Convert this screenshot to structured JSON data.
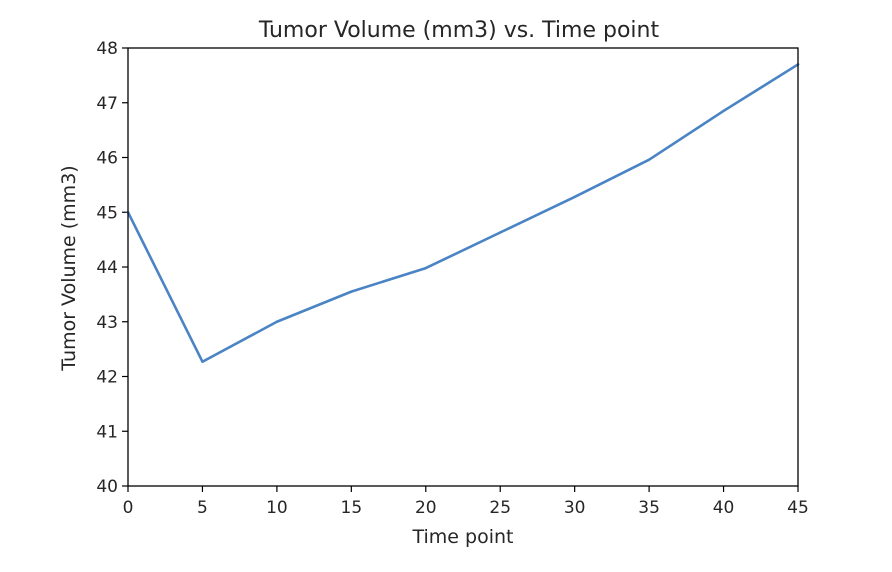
{
  "chart_data": {
    "type": "line",
    "title": "Tumor Volume (mm3) vs. Time point",
    "xlabel": "Time point",
    "ylabel": "Tumor Volume (mm3)",
    "x": [
      0,
      5,
      10,
      15,
      20,
      25,
      30,
      35,
      40,
      45
    ],
    "series": [
      {
        "values": [
          45.0,
          42.27,
          43.0,
          43.55,
          43.98,
          44.63,
          45.28,
          45.96,
          46.85,
          47.7
        ]
      }
    ],
    "xlim": [
      0,
      45
    ],
    "ylim": [
      40,
      48
    ],
    "xticks": [
      "0",
      "5",
      "10",
      "15",
      "20",
      "25",
      "30",
      "35",
      "40",
      "45"
    ],
    "yticks": [
      "40",
      "41",
      "42",
      "43",
      "44",
      "45",
      "46",
      "47",
      "48"
    ],
    "grid": false,
    "line_color": "#4a84c4"
  }
}
